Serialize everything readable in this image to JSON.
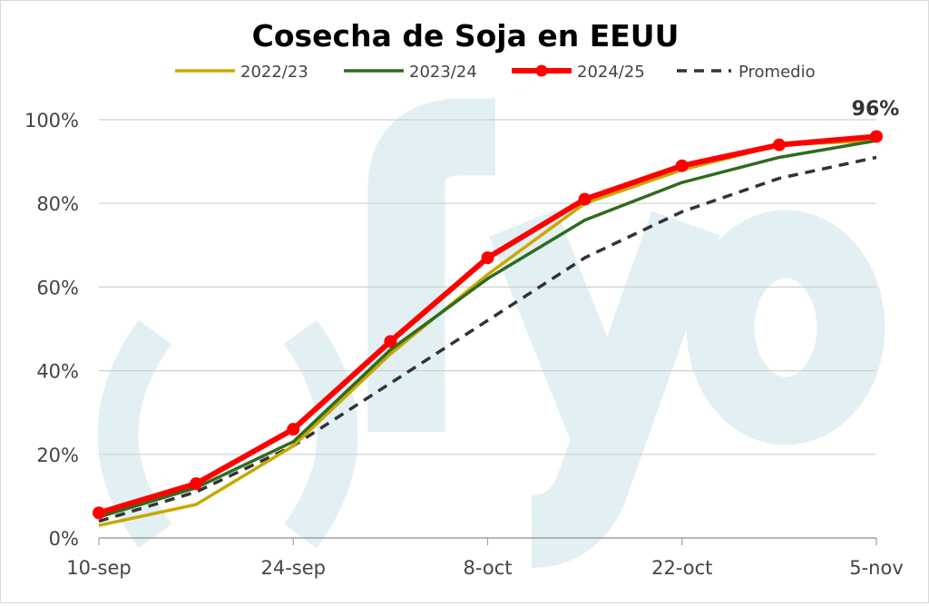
{
  "watermark": "()fyo",
  "chart_data": {
    "type": "line",
    "title": "Cosecha de Soja en EEUU",
    "xlabel": "",
    "ylabel": "",
    "x": [
      "10-sep",
      "17-sep",
      "24-sep",
      "1-oct",
      "8-oct",
      "15-oct",
      "22-oct",
      "29-oct",
      "5-nov"
    ],
    "xtick_labels": [
      "10-sep",
      "24-sep",
      "8-oct",
      "22-oct",
      "5-nov"
    ],
    "ytick_labels": [
      "0%",
      "20%",
      "40%",
      "60%",
      "80%",
      "100%"
    ],
    "ylim": [
      0,
      100
    ],
    "grid": true,
    "legend_position": "top",
    "annotation": "96%",
    "series": [
      {
        "name": "2022/23",
        "color": "#c8a800",
        "style": "solid",
        "values": [
          3,
          8,
          22,
          44,
          63,
          80,
          88,
          94,
          95
        ]
      },
      {
        "name": "2023/24",
        "color": "#2e6b1f",
        "style": "solid",
        "values": [
          5,
          12,
          23,
          45,
          62,
          76,
          85,
          91,
          95
        ]
      },
      {
        "name": "2024/25",
        "color": "#ff0000",
        "style": "markers",
        "values": [
          6,
          13,
          26,
          47,
          67,
          81,
          89,
          94,
          96
        ]
      },
      {
        "name": "Promedio",
        "color": "#333333",
        "style": "dashed",
        "values": [
          4,
          11,
          22,
          37,
          52,
          67,
          78,
          86,
          91
        ]
      }
    ]
  }
}
